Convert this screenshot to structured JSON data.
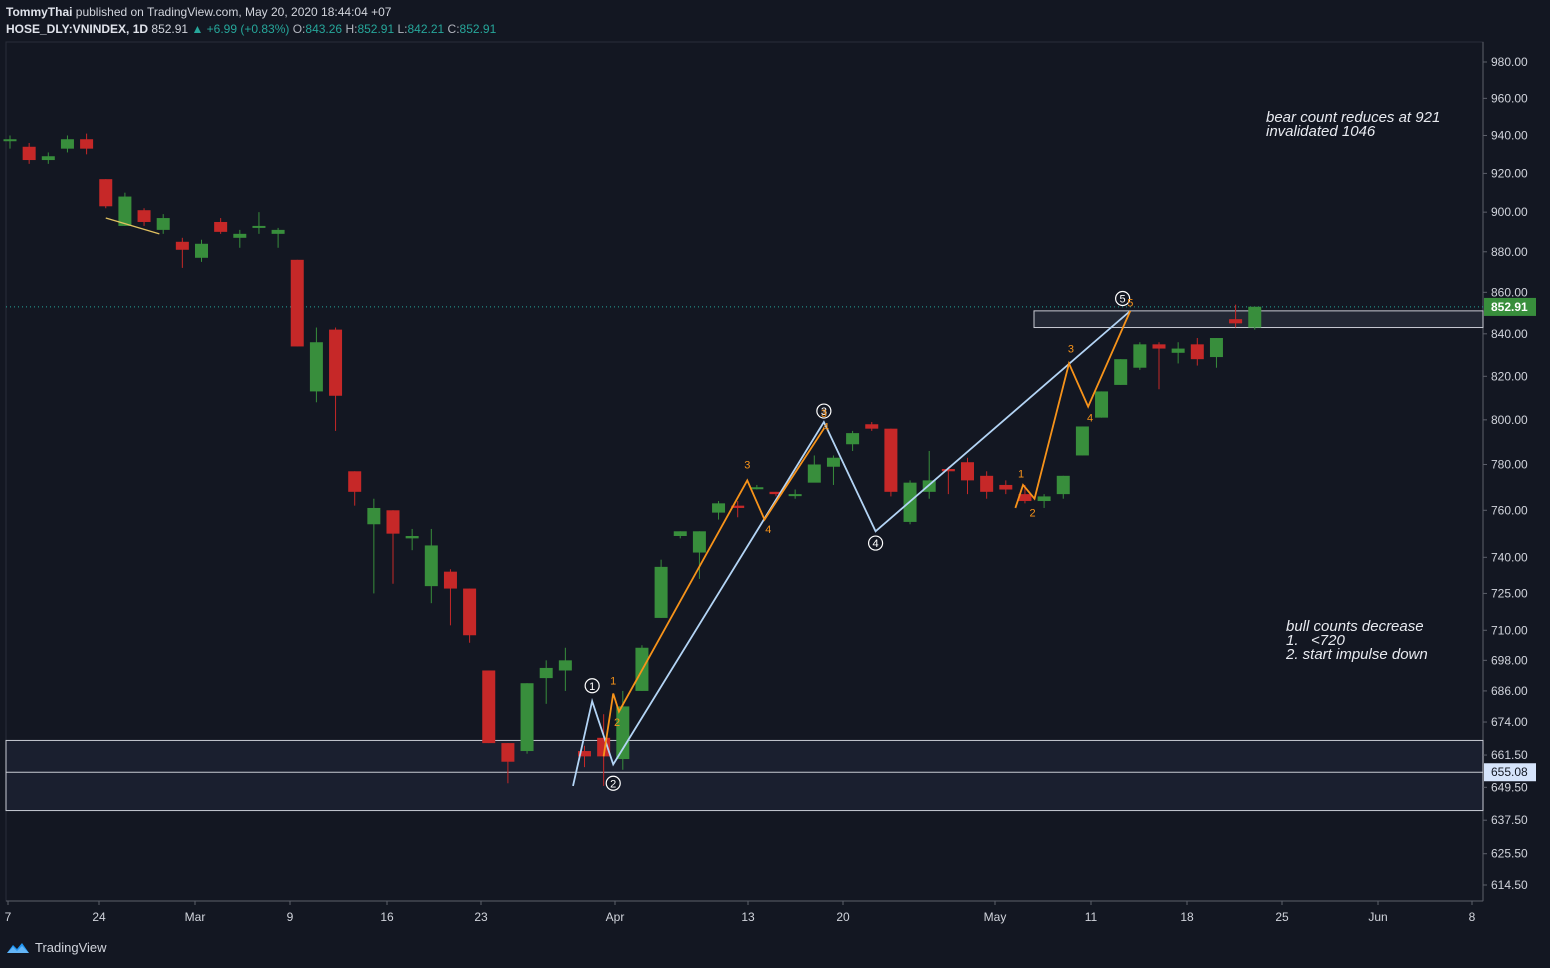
{
  "header": {
    "author": "TommyThai",
    "published": " published on TradingView.com, May 20, 2020 18:44:04 +07",
    "symbol": "HOSE_DLY:VNINDEX, 1D",
    "last": "852.91",
    "change": "▲ +6.99 (+0.83%)",
    "o_label": "O:",
    "o": "843.26",
    "h_label": "H:",
    "h": "852.91",
    "l_label": "L:",
    "l": "842.21",
    "c_label": "C:",
    "c": "852.91"
  },
  "annotations": {
    "bear": "bear count reduces at 921\ninvalidated 1046",
    "bull": "bull counts decrease\n1.   <720\n2. start impulse down"
  },
  "footer": {
    "brand": "TradingView"
  },
  "colors": {
    "background": "#131722",
    "up": "#388e3c",
    "down": "#c62828",
    "wave_major": "#b3d4f5",
    "wave_minor": "#f7931a",
    "price_line": "#26a69a"
  },
  "chart_data": {
    "type": "candlestick",
    "symbol": "HOSE_DLY:VNINDEX",
    "interval": "1D",
    "y_axis_ticks": [
      "980.00",
      "960.00",
      "940.00",
      "920.00",
      "900.00",
      "880.00",
      "860.00",
      "840.00",
      "820.00",
      "800.00",
      "780.00",
      "760.00",
      "740.00",
      "725.00",
      "710.00",
      "698.00",
      "686.00",
      "674.00",
      "661.50",
      "649.50",
      "637.50",
      "625.50",
      "614.50"
    ],
    "y_scale": "log",
    "x_axis_ticks": [
      "7",
      "24",
      "Mar",
      "9",
      "16",
      "23",
      "Apr",
      "13",
      "20",
      "May",
      "11",
      "18",
      "25",
      "Jun",
      "8"
    ],
    "price_label": "852.91",
    "level_label": "655.08",
    "candles": [
      {
        "o": 937,
        "h": 940,
        "l": 933,
        "c": 938
      },
      {
        "o": 934,
        "h": 936,
        "l": 925,
        "c": 927
      },
      {
        "o": 927,
        "h": 931,
        "l": 925,
        "c": 929
      },
      {
        "o": 933,
        "h": 940,
        "l": 931,
        "c": 938
      },
      {
        "o": 938,
        "h": 941,
        "l": 930,
        "c": 933
      },
      {
        "o": 917,
        "h": 917,
        "l": 902,
        "c": 903
      },
      {
        "o": 893,
        "h": 910,
        "l": 893,
        "c": 908
      },
      {
        "o": 901,
        "h": 902,
        "l": 893,
        "c": 895
      },
      {
        "o": 891,
        "h": 899,
        "l": 889,
        "c": 897
      },
      {
        "o": 885,
        "h": 887,
        "l": 872,
        "c": 881
      },
      {
        "o": 877,
        "h": 886,
        "l": 875,
        "c": 884
      },
      {
        "o": 895,
        "h": 897,
        "l": 889,
        "c": 890
      },
      {
        "o": 887,
        "h": 891,
        "l": 882,
        "c": 889
      },
      {
        "o": 892,
        "h": 900,
        "l": 889,
        "c": 893
      },
      {
        "o": 889,
        "h": 892,
        "l": 882,
        "c": 891
      },
      {
        "o": 876,
        "h": 876,
        "l": 834,
        "c": 834
      },
      {
        "o": 813,
        "h": 843,
        "l": 808,
        "c": 836
      },
      {
        "o": 842,
        "h": 843,
        "l": 795,
        "c": 811
      },
      {
        "o": 777,
        "h": 777,
        "l": 762,
        "c": 768
      },
      {
        "o": 754,
        "h": 765,
        "l": 725,
        "c": 761
      },
      {
        "o": 760,
        "h": 760,
        "l": 729,
        "c": 750
      },
      {
        "o": 748,
        "h": 752,
        "l": 743,
        "c": 749
      },
      {
        "o": 728,
        "h": 752,
        "l": 721,
        "c": 745
      },
      {
        "o": 734,
        "h": 735,
        "l": 712,
        "c": 727
      },
      {
        "o": 727,
        "h": 727,
        "l": 705,
        "c": 708
      },
      {
        "o": 694,
        "h": 694,
        "l": 666,
        "c": 666
      },
      {
        "o": 666,
        "h": 666,
        "l": 651,
        "c": 659
      },
      {
        "o": 663,
        "h": 689,
        "l": 662,
        "c": 689
      },
      {
        "o": 691,
        "h": 698,
        "l": 681,
        "c": 695
      },
      {
        "o": 694,
        "h": 703,
        "l": 686,
        "c": 698
      },
      {
        "o": 663,
        "h": 665,
        "l": 657,
        "c": 661
      },
      {
        "o": 668,
        "h": 677,
        "l": 650,
        "c": 661
      },
      {
        "o": 660,
        "h": 686,
        "l": 656,
        "c": 680
      },
      {
        "o": 686,
        "h": 704,
        "l": 686,
        "c": 703
      },
      {
        "o": 715,
        "h": 739,
        "l": 715,
        "c": 736
      },
      {
        "o": 749,
        "h": 751,
        "l": 748,
        "c": 751
      },
      {
        "o": 742,
        "h": 751,
        "l": 731,
        "c": 751
      },
      {
        "o": 759,
        "h": 764,
        "l": 756,
        "c": 763
      },
      {
        "o": 762,
        "h": 764,
        "l": 757,
        "c": 761
      },
      {
        "o": 770,
        "h": 771,
        "l": 769,
        "c": 770
      },
      {
        "o": 768,
        "h": 768,
        "l": 766,
        "c": 767
      },
      {
        "o": 767,
        "h": 769,
        "l": 765,
        "c": 767
      },
      {
        "o": 772,
        "h": 784,
        "l": 773,
        "c": 780
      },
      {
        "o": 779,
        "h": 784,
        "l": 771,
        "c": 783
      },
      {
        "o": 789,
        "h": 795,
        "l": 786,
        "c": 794
      },
      {
        "o": 798,
        "h": 799,
        "l": 795,
        "c": 796
      },
      {
        "o": 796,
        "h": 796,
        "l": 766,
        "c": 768
      },
      {
        "o": 755,
        "h": 773,
        "l": 754,
        "c": 772
      },
      {
        "o": 768,
        "h": 786,
        "l": 765,
        "c": 773
      },
      {
        "o": 778,
        "h": 779,
        "l": 767,
        "c": 777
      },
      {
        "o": 781,
        "h": 783,
        "l": 767,
        "c": 773
      },
      {
        "o": 775,
        "h": 777,
        "l": 765,
        "c": 768
      },
      {
        "o": 771,
        "h": 773,
        "l": 767,
        "c": 769
      },
      {
        "o": 767,
        "h": 771,
        "l": 763,
        "c": 764
      },
      {
        "o": 764,
        "h": 767,
        "l": 761,
        "c": 766
      },
      {
        "o": 767,
        "h": 775,
        "l": 765,
        "c": 775
      },
      {
        "o": 784,
        "h": 797,
        "l": 784,
        "c": 797
      },
      {
        "o": 801,
        "h": 813,
        "l": 801,
        "c": 813
      },
      {
        "o": 816,
        "h": 828,
        "l": 816,
        "c": 828
      },
      {
        "o": 824,
        "h": 836,
        "l": 823,
        "c": 835
      },
      {
        "o": 835,
        "h": 836,
        "l": 814,
        "c": 833
      },
      {
        "o": 831,
        "h": 836,
        "l": 826,
        "c": 833
      },
      {
        "o": 835,
        "h": 838,
        "l": 825,
        "c": 828
      },
      {
        "o": 829,
        "h": 838,
        "l": 824,
        "c": 838
      },
      {
        "o": 847,
        "h": 854,
        "l": 843,
        "c": 845
      },
      {
        "o": 843,
        "h": 853,
        "l": 842,
        "c": 853
      }
    ],
    "major_wave_labels": [
      "1",
      "2",
      "3",
      "4",
      "5"
    ],
    "minor_wave_labels": [
      "1",
      "2",
      "3",
      "4",
      "3",
      "4",
      "1",
      "2",
      "3",
      "4",
      "5"
    ],
    "zones": [
      {
        "from": 843,
        "to": 851
      },
      {
        "from": 641,
        "to": 667
      }
    ]
  }
}
